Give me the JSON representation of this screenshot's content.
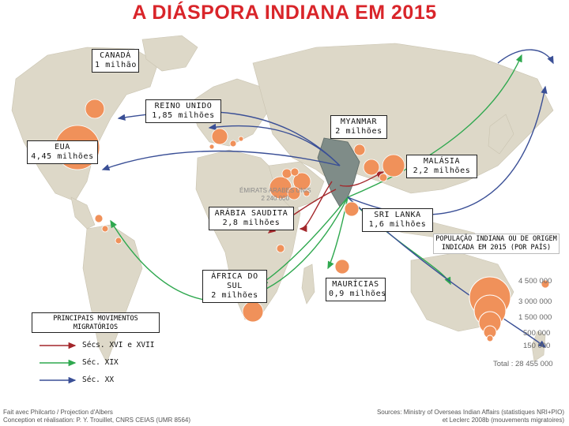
{
  "title": "A DIÁSPORA INDIANA EM 2015",
  "labels": {
    "canada": {
      "name": "CANADÁ",
      "value": "1 milhão"
    },
    "uk": {
      "name": "REINO UNIDO",
      "value": "1,85 milhões"
    },
    "usa": {
      "name": "EUA",
      "value": "4,45 milhões"
    },
    "myanmar": {
      "name": "MYANMAR",
      "value": "2 milhões"
    },
    "malaysia": {
      "name": "MALÁSIA",
      "value": "2,2 milhões"
    },
    "saudi": {
      "name": "ARÁBIA SAUDITA",
      "value": "2,8 milhões"
    },
    "srilanka": {
      "name": "SRI LANKA",
      "value": "1,6 milhões"
    },
    "southafrica": {
      "name": "ÁFRICA DO SUL",
      "value": "2 milhões"
    },
    "mauritius": {
      "name": "MAURÍCIAS",
      "value": "0,9 milhões"
    }
  },
  "uae": {
    "name": "ÉMIRATS ARABES UNIS",
    "value": "2 240 000"
  },
  "legend": {
    "title": "PRINCIPAIS MOVIMENTOS MIGRATÓRIOS",
    "items": [
      {
        "label": "Sécs. XVI e XVII",
        "color": "#a3262a"
      },
      {
        "label": "Séc. XIX",
        "color": "#2fa84f"
      },
      {
        "label": "Séc. XX",
        "color": "#3a4f96"
      }
    ]
  },
  "population_legend": {
    "title": "POPULAÇÃO INDIANA OU DE ORIGEM INDICADA EM 2015 (POR PAÍS)",
    "scale": [
      "4 500 000",
      "3 000 000",
      "1 500 000",
      "500 000",
      "150 000"
    ],
    "total": "Total : 28 455 000"
  },
  "footer": {
    "left_line1": "Fait avec Philcarto / Projection d'Albers",
    "left_line2": "Conception et réalisation: P. Y. Trouillet, CNRS CEIAS (UMR 8564)",
    "right_line1": "Sources: Ministry of Overseas Indian Affairs (statistiques NRI+PIO)",
    "right_line2": "et Leclerc 2008b (mouvements migratoires)"
  },
  "colors": {
    "title": "#d9252a",
    "circle": "#f0915a",
    "land": "#ddd8c8",
    "water": "#ffffff",
    "india": "#7f8c88"
  }
}
